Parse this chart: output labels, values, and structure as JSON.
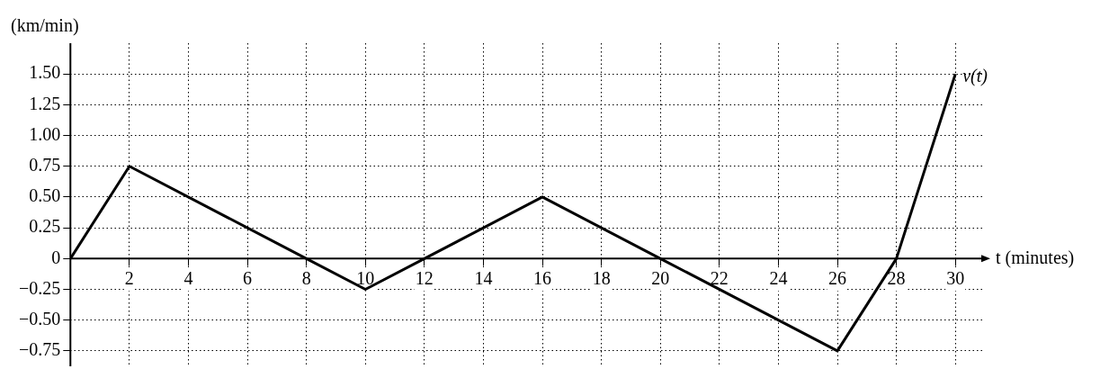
{
  "chart_data": {
    "type": "line",
    "xlabel": "t (minutes)",
    "ylabel": "(km/min)",
    "x": [
      0,
      2,
      8,
      10,
      12,
      16,
      20,
      26,
      28,
      30
    ],
    "series": [
      {
        "name": "v(t)",
        "color": "#000000",
        "values": [
          0,
          0.75,
          0,
          -0.25,
          0,
          0.5,
          0,
          -0.75,
          0,
          1.5
        ]
      }
    ],
    "xlim": [
      0,
      31
    ],
    "xticks": [
      2,
      4,
      6,
      8,
      10,
      12,
      14,
      16,
      18,
      20,
      22,
      24,
      26,
      28,
      30
    ],
    "ylim": [
      -0.875,
      1.75
    ],
    "yticks": [
      {
        "value": -0.75,
        "label": "−0.75"
      },
      {
        "value": -0.5,
        "label": "−0.50"
      },
      {
        "value": -0.25,
        "label": "−0.25"
      },
      0,
      {
        "value": 0.25,
        "label": "0.25"
      },
      {
        "value": 0.5,
        "label": "0.50"
      },
      {
        "value": 0.75,
        "label": "0.75"
      },
      {
        "value": 1,
        "label": "1.00"
      },
      {
        "value": 1.25,
        "label": "1.25"
      },
      {
        "value": 1.5,
        "label": "1.50"
      }
    ],
    "grid": true,
    "marker": "none",
    "line_style": "solid",
    "legend": false
  }
}
